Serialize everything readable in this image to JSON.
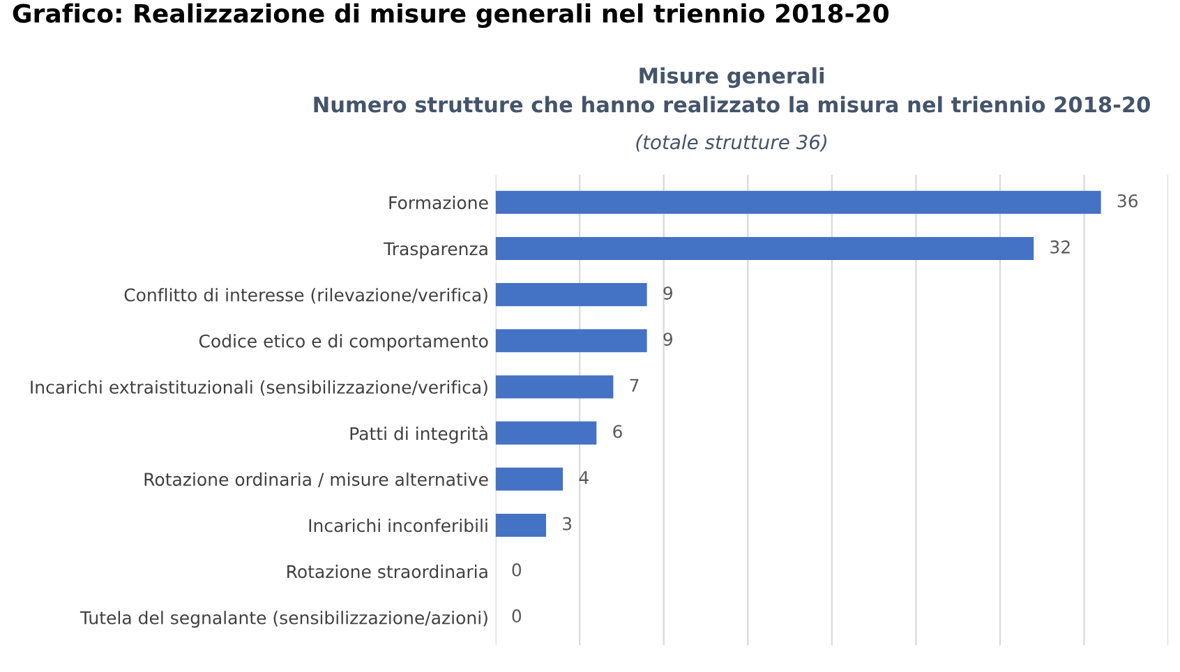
{
  "chart_data": {
    "type": "bar",
    "orientation": "horizontal",
    "title": "Misure generali\nNumero strutture che hanno realizzato la misura nel triennio 2018-20",
    "subtitle": "(totale strutture 36)",
    "annotations": [
      "Grafico: Realizzazione di misure generali nel triennio 2018-20"
    ],
    "categories": [
      "Formazione",
      "Trasparenza",
      "Conflitto di interesse (rilevazione/verifica)",
      "Codice etico e di comportamento",
      "Incarichi extraistituzionali (sensibilizzazione/verifica)",
      "Patti di integrità",
      "Rotazione ordinaria / misure alternative",
      "Incarichi inconferibili",
      "Rotazione straordinaria",
      "Tutela del segnalante (sensibilizzazione/azioni)"
    ],
    "values": [
      36,
      32,
      9,
      9,
      7,
      6,
      4,
      3,
      0,
      0
    ],
    "color": "#4472c4",
    "xlim": [
      0,
      40
    ],
    "xticks": [
      {
        "value": 0,
        "label": null
      },
      {
        "value": 5,
        "label": null
      },
      {
        "value": 10,
        "label": null
      },
      {
        "value": 15,
        "label": null
      },
      {
        "value": 20,
        "label": null
      },
      {
        "value": 25,
        "label": null
      },
      {
        "value": 30,
        "label": null
      },
      {
        "value": 35,
        "label": null
      },
      {
        "value": 40,
        "label": null
      }
    ],
    "tick_labels": "y",
    "grid": "x",
    "data_labels": true
  }
}
